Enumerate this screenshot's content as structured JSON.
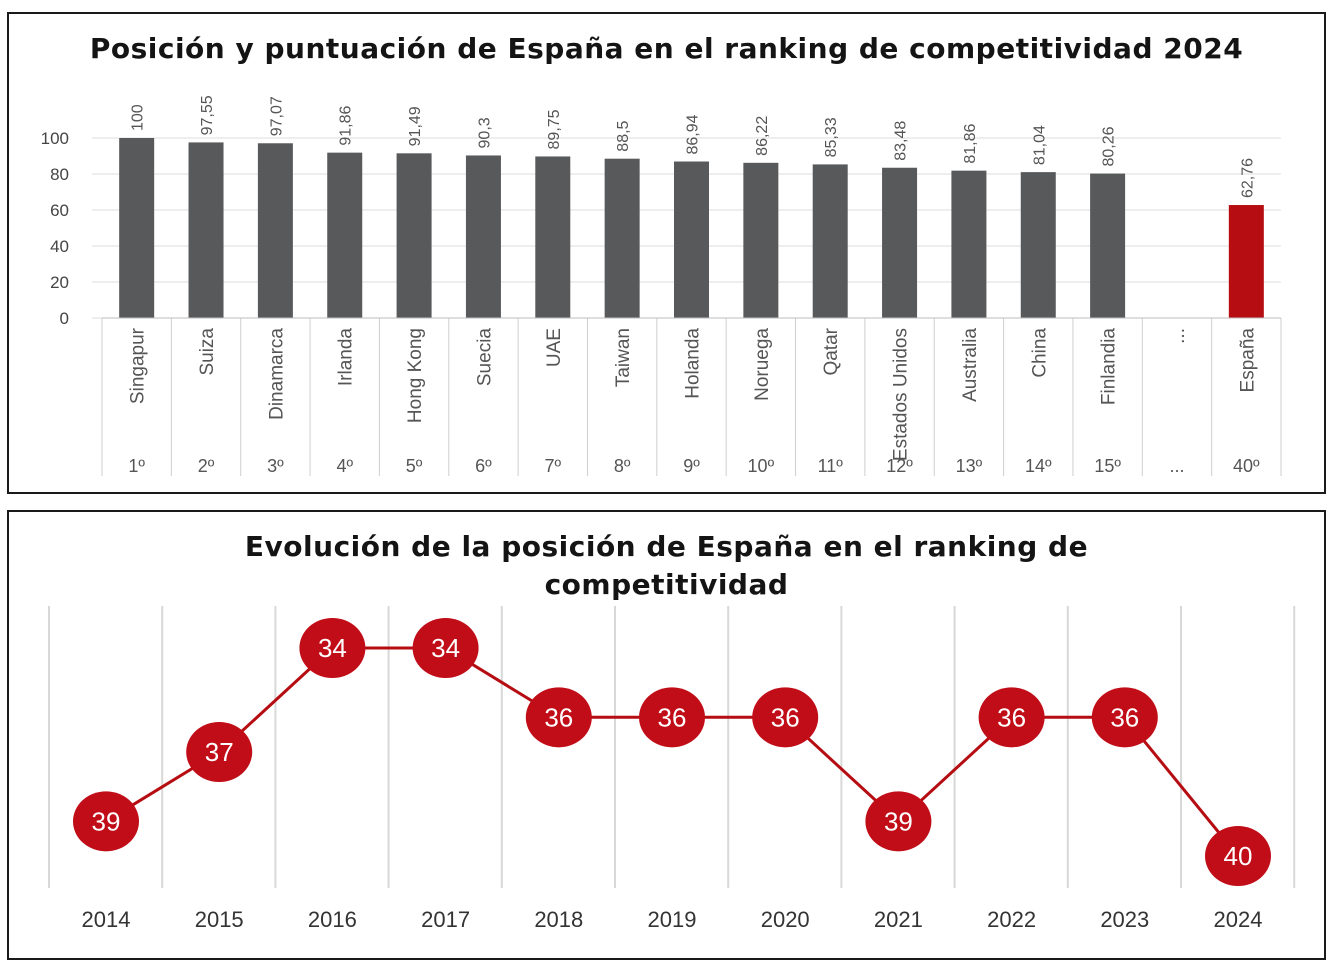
{
  "chart_data": [
    {
      "type": "bar",
      "title": "Posición y puntuación de España en el ranking de competitividad 2024",
      "categories": [
        "Singapur",
        "Suiza",
        "Dinamarca",
        "Irlanda",
        "Hong Kong",
        "Suecia",
        "UAE",
        "Taiwan",
        "Holanda",
        "Noruega",
        "Qatar",
        "Estados Unidos",
        "Australia",
        "China",
        "Finlandia",
        "...",
        "España"
      ],
      "ranks": [
        "1º",
        "2º",
        "3º",
        "4º",
        "5º",
        "6º",
        "7º",
        "8º",
        "9º",
        "10º",
        "11º",
        "12º",
        "13º",
        "14º",
        "15º",
        "...",
        "40º"
      ],
      "values": [
        100,
        97.55,
        97.07,
        91.86,
        91.49,
        90.3,
        89.75,
        88.5,
        86.94,
        86.22,
        85.33,
        83.48,
        81.86,
        81.04,
        80.26,
        null,
        62.76
      ],
      "value_labels": [
        "100",
        "97,55",
        "97,07",
        "91,86",
        "91,49",
        "90,3",
        "89,75",
        "88,5",
        "86,94",
        "86,22",
        "85,33",
        "83,48",
        "81,86",
        "81,04",
        "80,26",
        "",
        "62,76"
      ],
      "yticks": [
        "0",
        "20",
        "40",
        "60",
        "80",
        "100"
      ],
      "ylim": [
        0,
        100
      ],
      "grid": true,
      "colors": {
        "default": "#58595b",
        "highlight": "#b50d12"
      },
      "highlight_index": 16
    },
    {
      "type": "line",
      "title": "Evolución de la posición de España en el ranking de competitividad",
      "x": [
        "2014",
        "2015",
        "2016",
        "2017",
        "2018",
        "2019",
        "2020",
        "2021",
        "2022",
        "2023",
        "2024"
      ],
      "values": [
        39,
        37,
        34,
        34,
        36,
        36,
        36,
        39,
        36,
        36,
        40
      ],
      "y_inverted": true,
      "grid": true,
      "colors": {
        "line": "#b50d12",
        "marker": "#c10d17",
        "marker_text": "#ffffff"
      }
    }
  ]
}
